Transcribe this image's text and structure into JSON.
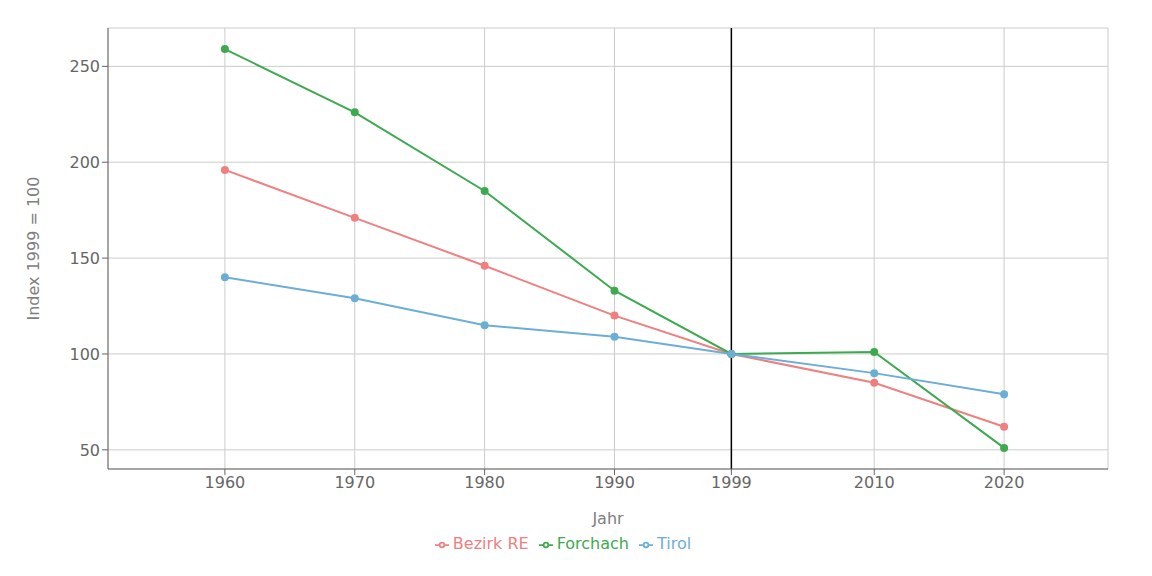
{
  "chart_data": {
    "type": "line",
    "x": [
      1960,
      1970,
      1980,
      1990,
      1999,
      2010,
      2020
    ],
    "series": [
      {
        "name": "Bezirk RE",
        "color": "#F08080",
        "marker": "circle",
        "values": [
          196,
          171,
          146,
          120,
          100,
          85,
          62
        ]
      },
      {
        "name": "Forchach",
        "color": "#3DAA4F",
        "marker": "circle",
        "values": [
          259,
          226,
          185,
          133,
          100,
          101,
          51
        ]
      },
      {
        "name": "Tirol",
        "color": "#6BAED6",
        "marker": "circle",
        "values": [
          140,
          129,
          115,
          109,
          100,
          90,
          79
        ]
      }
    ],
    "xlabel": "Jahr",
    "ylabel": "Index 1999 = 100",
    "xlim": [
      1951,
      2028
    ],
    "ylim": [
      40,
      270
    ],
    "xticks": [
      1960,
      1970,
      1980,
      1990,
      1999,
      2010,
      2020
    ],
    "yticks": [
      50,
      100,
      150,
      200,
      250
    ],
    "grid": true,
    "legend": "bottom",
    "vline": 1999
  }
}
